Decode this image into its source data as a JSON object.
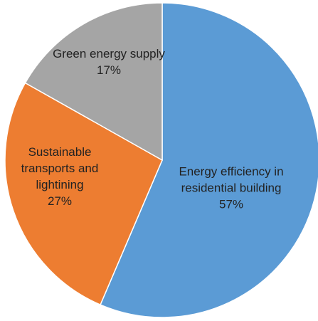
{
  "chart_data": {
    "type": "pie",
    "slices": [
      {
        "label_lines": [
          "Energy efficiency in",
          "residential building"
        ],
        "value": 57,
        "value_label": "57%",
        "color": "#5b9bd5"
      },
      {
        "label_lines": [
          "Sustainable",
          "transports and",
          "lightining"
        ],
        "value": 27,
        "value_label": "27%",
        "color": "#ed7d31"
      },
      {
        "label_lines": [
          "Green energy supply"
        ],
        "value": 17,
        "value_label": "17%",
        "color": "#a5a5a5"
      }
    ],
    "start_angle_deg": 0,
    "direction": "clockwise",
    "legend": "none",
    "title": ""
  }
}
